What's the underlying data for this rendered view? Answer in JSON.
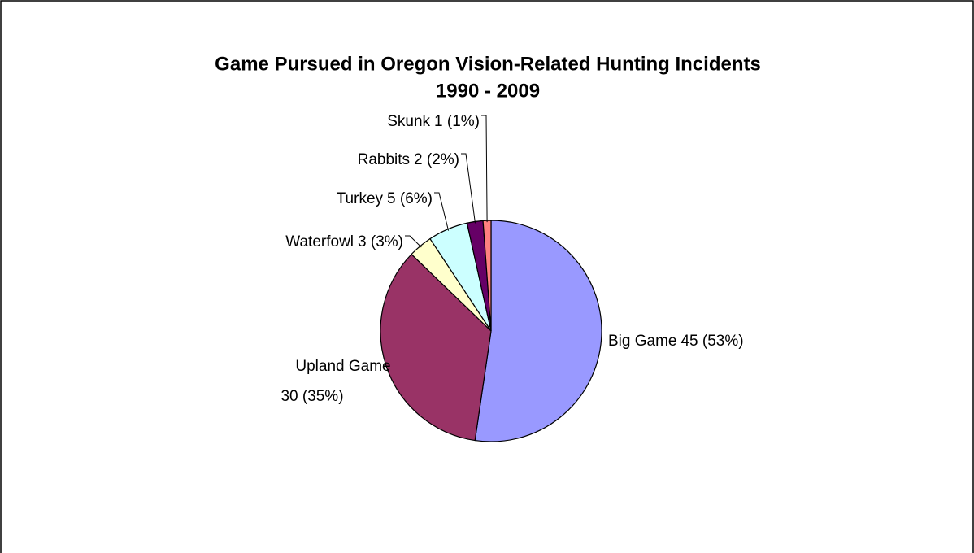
{
  "chart_data": {
    "type": "pie",
    "title": [
      "Game Pursued in Oregon Vision-Related Hunting Incidents",
      "1990 - 2009"
    ],
    "categories": [
      "Big Game",
      "Upland Game",
      "Waterfowl",
      "Turkey",
      "Rabbits",
      "Skunk"
    ],
    "values": [
      45,
      30,
      3,
      5,
      2,
      1
    ],
    "value_labels": [
      "45 (53%)",
      "30 (35%)",
      "3 (3%)",
      "5 (6%)",
      "2 (2%)",
      "1 (1%)"
    ],
    "colors": [
      "#9999ff",
      "#993366",
      "#ffffcc",
      "#ccffff",
      "#660066",
      "#ff8080"
    ]
  }
}
